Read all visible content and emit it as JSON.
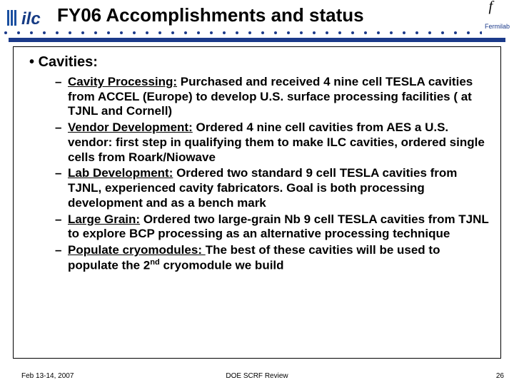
{
  "colors": {
    "accent": "#1b3a8a",
    "text": "#000000",
    "bg": "#ffffff"
  },
  "header": {
    "title": "FY06 Accomplishments and status",
    "topright_symbol": "f",
    "lab_label": "Fermilab"
  },
  "logo": {
    "alt": "ILC logo",
    "bars_color": "#1A4FA0",
    "text": "ilc",
    "text_color": "#163B84"
  },
  "section": {
    "heading": "Cavities:",
    "items": [
      {
        "lead": "Cavity Processing:",
        "body": " Purchased and received 4 nine cell TESLA cavities from ACCEL (Europe) to develop U.S. surface processing facilities ( at TJNL and Cornell)"
      },
      {
        "lead": "Vendor Development:",
        "body": " Ordered 4 nine cell cavities from AES a U.S. vendor: first step in qualifying them to make ILC cavities, ordered single cells from Roark/Niowave"
      },
      {
        "lead": "Lab Development:",
        "body": " Ordered two standard 9 cell TESLA cavities from TJNL, experienced cavity fabricators. Goal is both processing development and as a bench mark"
      },
      {
        "lead": "Large Grain:",
        "body": " Ordered two large-grain Nb 9 cell TESLA cavities from TJNL to explore BCP processing as an alternative processing technique"
      },
      {
        "lead": "Populate cryomodules: ",
        "body": " The best of these cavities will be used to populate the 2",
        "sup": "nd",
        "tail": " cryomodule we build"
      }
    ]
  },
  "footer": {
    "date": "Feb 13-14, 2007",
    "center": "DOE SCRF Review",
    "page": "26"
  }
}
